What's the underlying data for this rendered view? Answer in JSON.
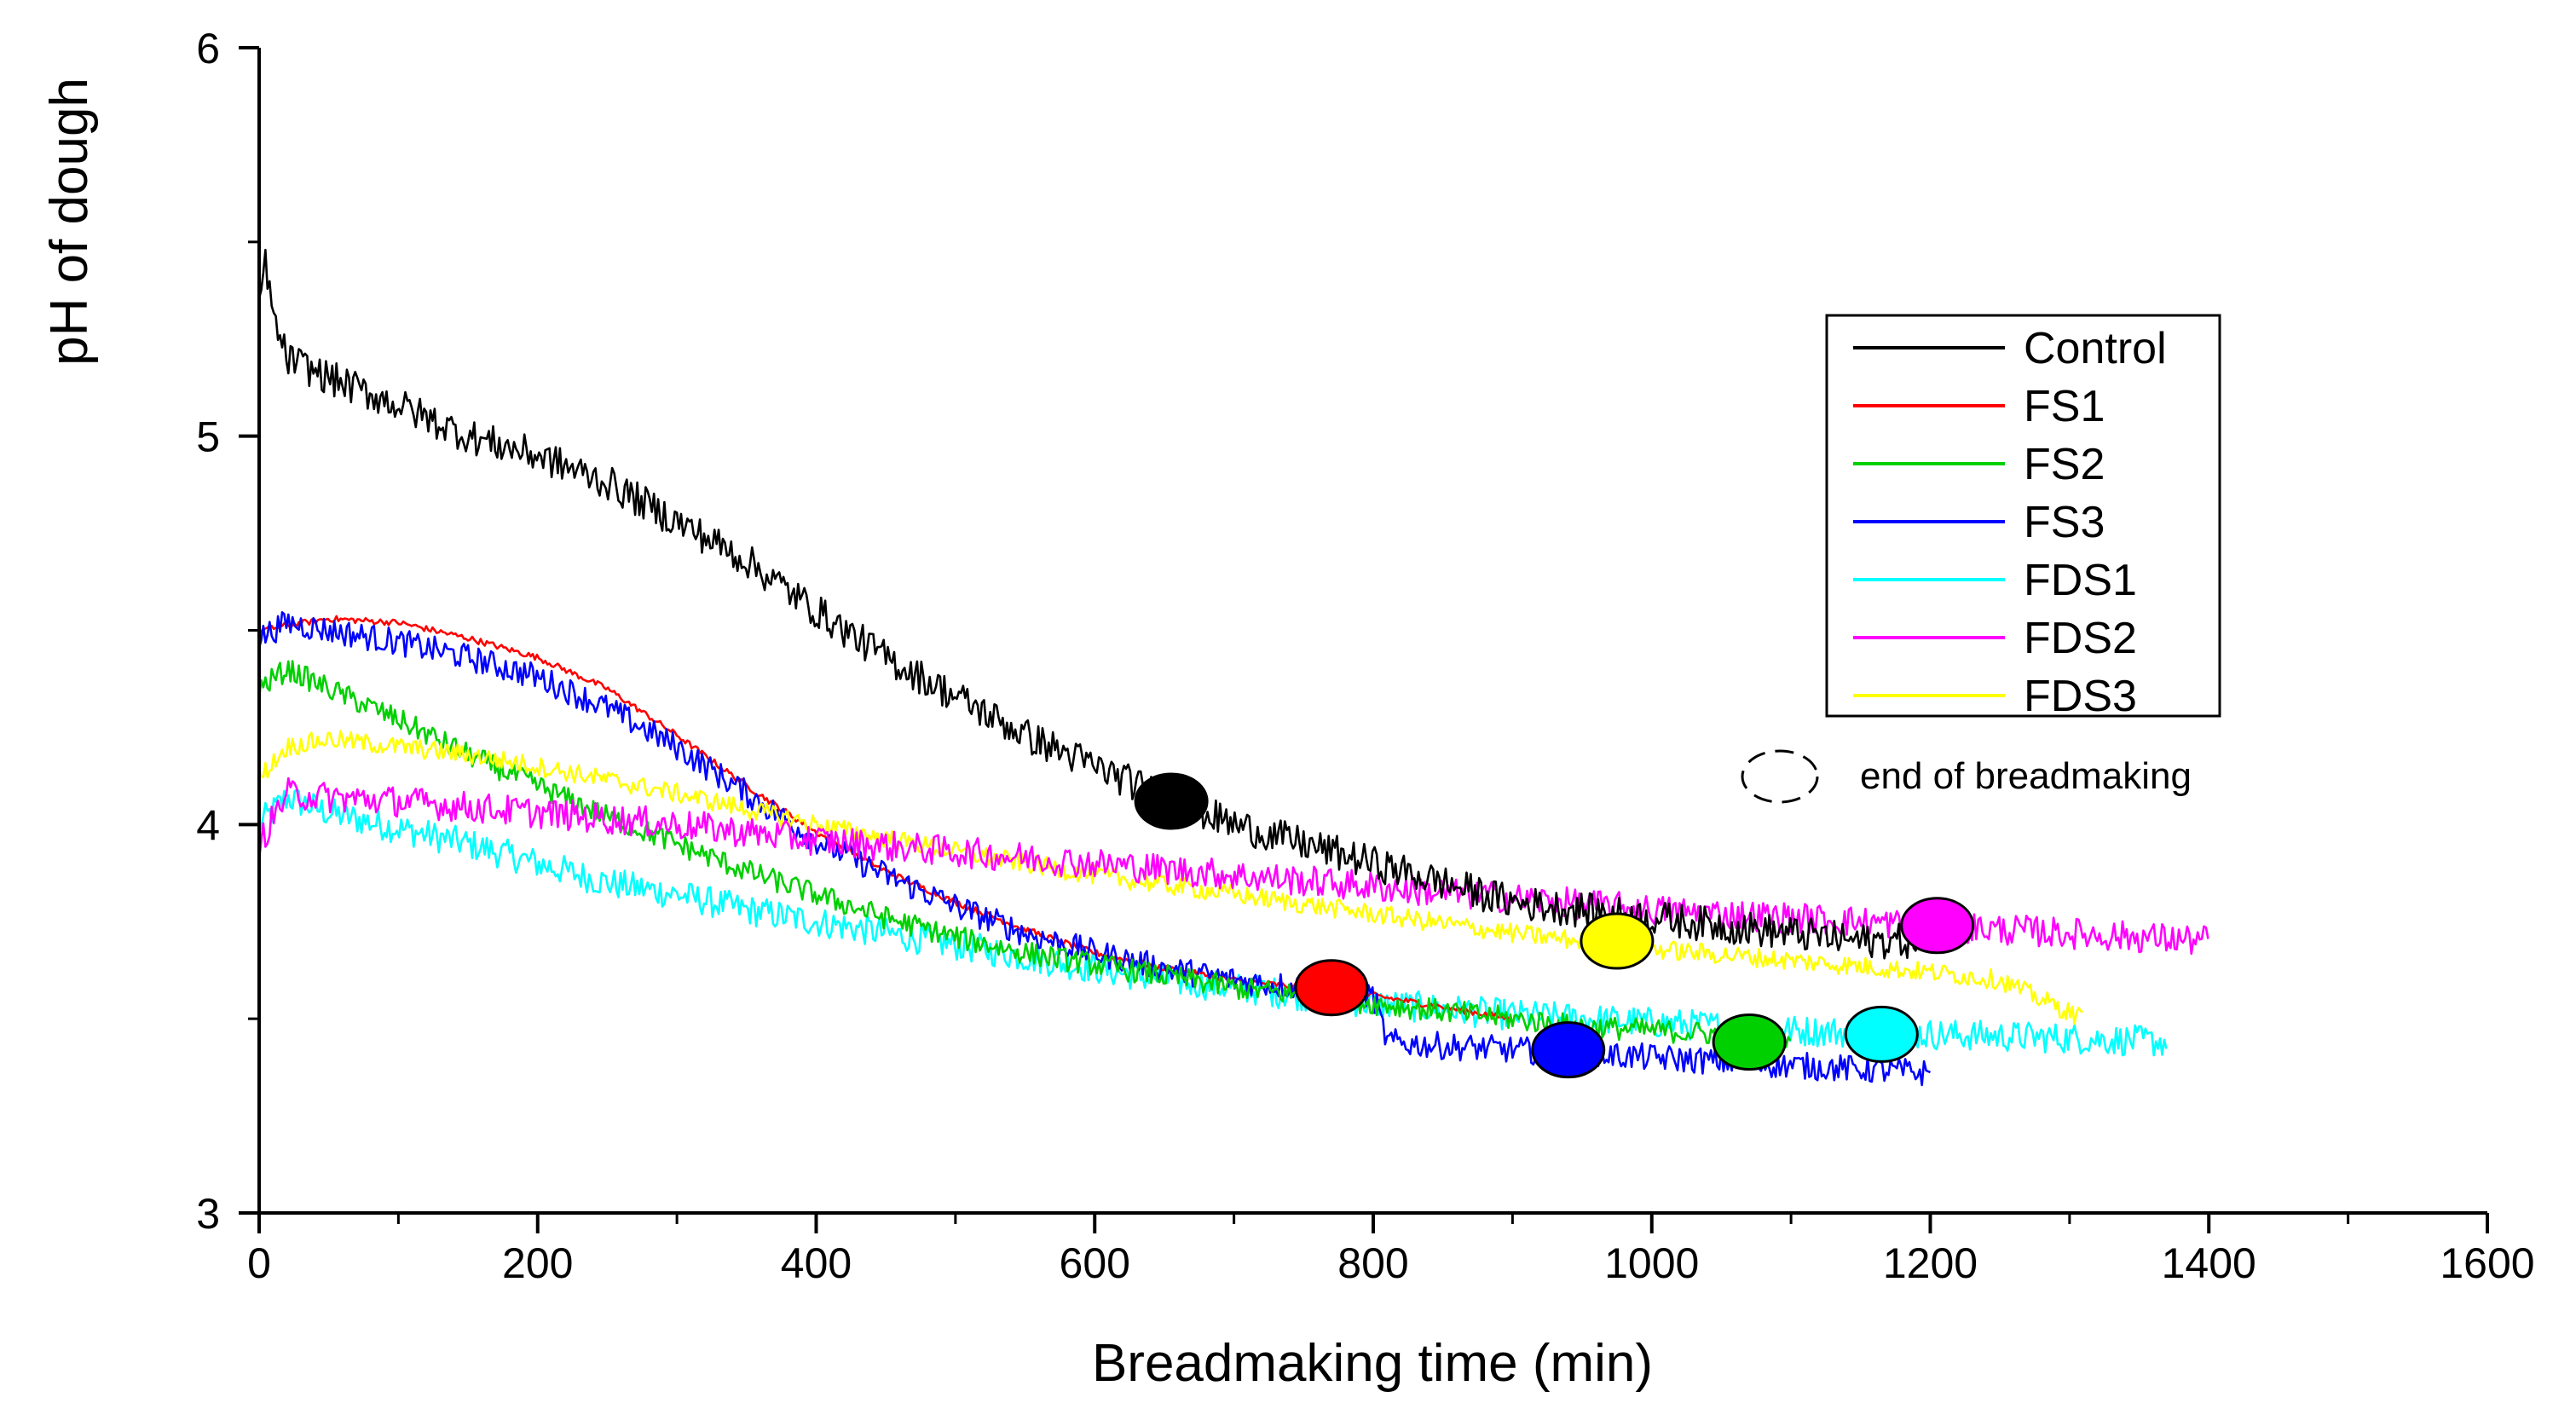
{
  "chart_data": {
    "type": "line",
    "title": "",
    "xlabel": "Breadmaking time (min)",
    "ylabel": "pH of dough",
    "xlim": [
      0,
      1600
    ],
    "ylim": [
      3,
      6
    ],
    "xticks": [
      0,
      200,
      400,
      600,
      800,
      1000,
      1200,
      1400,
      1600
    ],
    "yticks": [
      3,
      4,
      5,
      6
    ],
    "grid": false,
    "legend_position": "top-right",
    "annotation": {
      "text": "end of breadmaking"
    },
    "series": [
      {
        "name": "Control",
        "color": "#000000",
        "noise": 0.045,
        "x": [
          0,
          5,
          10,
          20,
          50,
          100,
          150,
          200,
          250,
          300,
          350,
          400,
          450,
          500,
          550,
          600,
          650,
          700,
          750,
          800,
          850,
          900,
          950,
          1000,
          1050,
          1100,
          1150,
          1200
        ],
        "y": [
          5.35,
          5.45,
          5.3,
          5.2,
          5.15,
          5.08,
          5.0,
          4.95,
          4.88,
          4.78,
          4.68,
          4.55,
          4.43,
          4.33,
          4.23,
          4.15,
          4.07,
          4.0,
          3.95,
          3.9,
          3.85,
          3.8,
          3.78,
          3.76,
          3.74,
          3.72,
          3.7,
          3.7
        ],
        "end_point": {
          "x": 655,
          "y": 4.06
        }
      },
      {
        "name": "FS1",
        "color": "#ff0000",
        "noise": 0.008,
        "x": [
          0,
          50,
          100,
          150,
          200,
          250,
          300,
          350,
          400,
          450,
          500,
          550,
          600,
          650,
          700,
          750,
          800,
          850,
          900
        ],
        "y": [
          4.5,
          4.53,
          4.52,
          4.48,
          4.43,
          4.35,
          4.23,
          4.1,
          3.98,
          3.88,
          3.8,
          3.73,
          3.67,
          3.63,
          3.6,
          3.58,
          3.56,
          3.53,
          3.5
        ],
        "end_point": {
          "x": 770,
          "y": 3.58
        }
      },
      {
        "name": "FS2",
        "color": "#00d000",
        "noise": 0.03,
        "x": [
          0,
          20,
          50,
          100,
          150,
          200,
          250,
          300,
          350,
          400,
          450,
          500,
          550,
          600,
          650,
          700,
          750,
          800,
          850,
          900,
          950,
          1000,
          1050,
          1100
        ],
        "y": [
          4.35,
          4.4,
          4.35,
          4.27,
          4.18,
          4.1,
          4.02,
          3.95,
          3.88,
          3.82,
          3.76,
          3.71,
          3.67,
          3.64,
          3.61,
          3.58,
          3.56,
          3.54,
          3.52,
          3.5,
          3.48,
          3.47,
          3.46,
          3.45
        ],
        "end_point": {
          "x": 1070,
          "y": 3.44
        }
      },
      {
        "name": "FS3",
        "color": "#0000ff",
        "noise": 0.035,
        "x": [
          0,
          20,
          50,
          100,
          150,
          200,
          250,
          300,
          350,
          400,
          450,
          500,
          550,
          600,
          650,
          700,
          750,
          800,
          810,
          850,
          900,
          950,
          1000,
          1050,
          1100,
          1150,
          1200
        ],
        "y": [
          4.48,
          4.52,
          4.5,
          4.47,
          4.43,
          4.38,
          4.3,
          4.2,
          4.08,
          3.96,
          3.87,
          3.79,
          3.72,
          3.67,
          3.63,
          3.6,
          3.58,
          3.56,
          3.44,
          3.43,
          3.42,
          3.41,
          3.4,
          3.39,
          3.38,
          3.37,
          3.36
        ],
        "end_point": {
          "x": 940,
          "y": 3.42
        }
      },
      {
        "name": "FDS1",
        "color": "#00ffff",
        "noise": 0.04,
        "x": [
          0,
          20,
          50,
          100,
          150,
          200,
          250,
          300,
          350,
          400,
          450,
          500,
          550,
          600,
          650,
          700,
          750,
          800,
          900,
          1000,
          1100,
          1200,
          1300,
          1370
        ],
        "y": [
          4.0,
          4.07,
          4.03,
          3.99,
          3.95,
          3.9,
          3.85,
          3.82,
          3.78,
          3.75,
          3.72,
          3.69,
          3.66,
          3.63,
          3.6,
          3.58,
          3.56,
          3.54,
          3.51,
          3.49,
          3.47,
          3.46,
          3.45,
          3.44
        ],
        "end_point": {
          "x": 1165,
          "y": 3.46
        }
      },
      {
        "name": "FDS2",
        "color": "#ff00ff",
        "noise": 0.04,
        "x": [
          0,
          20,
          50,
          100,
          200,
          300,
          400,
          500,
          600,
          700,
          800,
          900,
          1000,
          1100,
          1200,
          1300,
          1400
        ],
        "y": [
          3.95,
          4.08,
          4.07,
          4.06,
          4.03,
          4.0,
          3.96,
          3.93,
          3.9,
          3.87,
          3.84,
          3.81,
          3.78,
          3.76,
          3.74,
          3.72,
          3.7
        ],
        "end_point": {
          "x": 1205,
          "y": 3.74
        }
      },
      {
        "name": "FDS3",
        "color": "#ffff00",
        "noise": 0.025,
        "x": [
          0,
          20,
          50,
          100,
          150,
          200,
          300,
          400,
          500,
          600,
          700,
          800,
          900,
          1000,
          1100,
          1200,
          1250,
          1280,
          1310
        ],
        "y": [
          4.12,
          4.2,
          4.22,
          4.2,
          4.18,
          4.15,
          4.08,
          4.0,
          3.93,
          3.87,
          3.82,
          3.77,
          3.72,
          3.68,
          3.65,
          3.62,
          3.6,
          3.55,
          3.5
        ],
        "end_point": {
          "x": 975,
          "y": 3.7
        }
      }
    ]
  }
}
